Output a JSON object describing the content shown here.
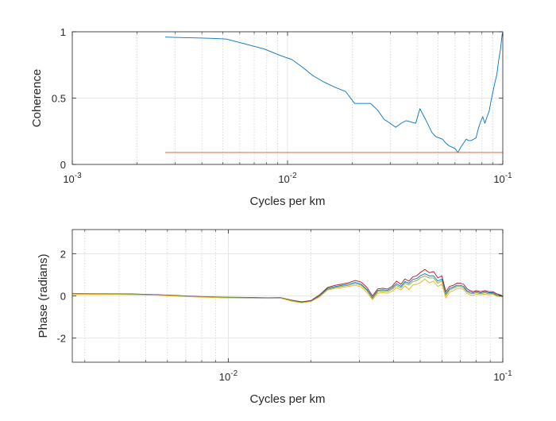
{
  "chart_data": [
    {
      "type": "line",
      "title": "",
      "xlabel": "Cycles per km",
      "ylabel": "Coherence",
      "xscale": "log",
      "xlim": [
        0.001,
        0.1
      ],
      "ylim": [
        0,
        1
      ],
      "grid": true,
      "x_ticks": [
        {
          "value": 0.001,
          "label": "10",
          "exp": "-3"
        },
        {
          "value": 0.01,
          "label": "10",
          "exp": "-2"
        },
        {
          "value": 0.1,
          "label": "10",
          "exp": "-1"
        }
      ],
      "y_ticks": [
        {
          "value": 0,
          "label": "0"
        },
        {
          "value": 0.5,
          "label": "0.5"
        },
        {
          "value": 1,
          "label": "1"
        }
      ],
      "series": [
        {
          "color": "#0072BD",
          "x": [
            0.0027,
            0.0035,
            0.0045,
            0.0052,
            0.0063,
            0.0078,
            0.0093,
            0.0105,
            0.0118,
            0.0131,
            0.0148,
            0.0167,
            0.0186,
            0.0205,
            0.0224,
            0.0243,
            0.0262,
            0.0281,
            0.03,
            0.0318,
            0.0337,
            0.0356,
            0.0375,
            0.0394,
            0.0412,
            0.0431,
            0.045,
            0.0469,
            0.0488,
            0.0506,
            0.0525,
            0.0544,
            0.0563,
            0.0582,
            0.06,
            0.0619,
            0.0638,
            0.0657,
            0.0676,
            0.0694,
            0.0713,
            0.0732,
            0.0751,
            0.077,
            0.0788,
            0.0807,
            0.0826,
            0.0845,
            0.0864,
            0.0882,
            0.0901,
            0.092,
            0.0939,
            0.0958,
            0.0976,
            0.0995
          ],
          "y": [
            0.96,
            0.955,
            0.95,
            0.945,
            0.91,
            0.87,
            0.82,
            0.79,
            0.73,
            0.67,
            0.62,
            0.58,
            0.55,
            0.46,
            0.46,
            0.46,
            0.41,
            0.34,
            0.31,
            0.28,
            0.31,
            0.33,
            0.32,
            0.31,
            0.42,
            0.36,
            0.3,
            0.24,
            0.21,
            0.2,
            0.19,
            0.16,
            0.14,
            0.13,
            0.12,
            0.09,
            0.13,
            0.16,
            0.19,
            0.18,
            0.18,
            0.19,
            0.2,
            0.27,
            0.32,
            0.36,
            0.31,
            0.36,
            0.4,
            0.48,
            0.55,
            0.62,
            0.68,
            0.79,
            0.87,
            0.99
          ]
        },
        {
          "color": "#D95319",
          "x": [
            0.0027,
            0.1
          ],
          "y": [
            0.09,
            0.09
          ]
        }
      ]
    },
    {
      "type": "line",
      "title": "",
      "xlabel": "Cycles per km",
      "ylabel": "Phase (radians)",
      "xscale": "log",
      "xlim": [
        0.0027,
        0.1
      ],
      "ylim": [
        -3.1416,
        3.1416
      ],
      "grid": true,
      "x_ticks": [
        {
          "value": 0.01,
          "label": "10",
          "exp": "-2"
        },
        {
          "value": 0.1,
          "label": "10",
          "exp": "-1"
        }
      ],
      "y_ticks": [
        {
          "value": -2,
          "label": "-2"
        },
        {
          "value": 0,
          "label": "0"
        },
        {
          "value": 2,
          "label": "2"
        }
      ],
      "x": [
        0.0027,
        0.0035,
        0.0045,
        0.0055,
        0.0065,
        0.0075,
        0.0085,
        0.0095,
        0.011,
        0.0125,
        0.014,
        0.0155,
        0.017,
        0.0185,
        0.02,
        0.0215,
        0.023,
        0.0245,
        0.026,
        0.0275,
        0.029,
        0.0305,
        0.032,
        0.0335,
        0.035,
        0.0365,
        0.038,
        0.0395,
        0.041,
        0.0425,
        0.044,
        0.0455,
        0.047,
        0.0485,
        0.05,
        0.052,
        0.054,
        0.056,
        0.058,
        0.06,
        0.062,
        0.064,
        0.066,
        0.068,
        0.07,
        0.072,
        0.074,
        0.076,
        0.078,
        0.08,
        0.083,
        0.086,
        0.089,
        0.092,
        0.095,
        0.098,
        0.1
      ],
      "series": [
        {
          "color": "#A2142F",
          "y": [
            0.11,
            0.1,
            0.09,
            0.06,
            0.02,
            -0.02,
            -0.04,
            -0.06,
            -0.07,
            -0.08,
            -0.09,
            -0.08,
            -0.2,
            -0.28,
            -0.22,
            0.05,
            0.4,
            0.5,
            0.56,
            0.63,
            0.73,
            0.65,
            0.4,
            0.0,
            0.33,
            0.36,
            0.32,
            0.45,
            0.7,
            0.55,
            0.8,
            0.7,
            0.9,
            0.95,
            1.1,
            1.25,
            1.1,
            1.15,
            0.85,
            0.95,
            0.2,
            0.45,
            0.5,
            0.6,
            0.6,
            0.55,
            0.35,
            0.25,
            0.2,
            0.25,
            0.2,
            0.25,
            0.2,
            0.2,
            0.1,
            0.05,
            -0.02
          ]
        },
        {
          "color": "#0072BD",
          "y": [
            0.1,
            0.09,
            0.08,
            0.05,
            0.01,
            -0.03,
            -0.05,
            -0.07,
            -0.08,
            -0.09,
            -0.1,
            -0.09,
            -0.22,
            -0.3,
            -0.24,
            0.0,
            0.35,
            0.44,
            0.5,
            0.56,
            0.64,
            0.55,
            0.3,
            -0.08,
            0.26,
            0.29,
            0.26,
            0.38,
            0.58,
            0.45,
            0.68,
            0.6,
            0.78,
            0.82,
            0.95,
            1.05,
            0.95,
            0.95,
            0.7,
            0.8,
            0.1,
            0.35,
            0.42,
            0.5,
            0.5,
            0.45,
            0.25,
            0.18,
            0.15,
            0.2,
            0.15,
            0.2,
            0.15,
            0.15,
            0.05,
            0.02,
            -0.04
          ]
        },
        {
          "color": "#77AC30",
          "y": [
            0.09,
            0.08,
            0.07,
            0.04,
            0.0,
            -0.04,
            -0.06,
            -0.08,
            -0.09,
            -0.1,
            -0.11,
            -0.1,
            -0.23,
            -0.32,
            -0.26,
            -0.03,
            0.31,
            0.4,
            0.46,
            0.5,
            0.58,
            0.5,
            0.25,
            -0.12,
            0.2,
            0.24,
            0.2,
            0.32,
            0.5,
            0.38,
            0.6,
            0.52,
            0.68,
            0.72,
            0.85,
            0.95,
            0.85,
            0.85,
            0.6,
            0.72,
            0.02,
            0.28,
            0.36,
            0.44,
            0.44,
            0.38,
            0.2,
            0.12,
            0.1,
            0.15,
            0.1,
            0.15,
            0.1,
            0.12,
            0.02,
            0.0,
            -0.05
          ]
        },
        {
          "color": "#EDB120",
          "y": [
            0.08,
            0.07,
            0.06,
            0.03,
            -0.01,
            -0.05,
            -0.07,
            -0.09,
            -0.1,
            -0.11,
            -0.12,
            -0.11,
            -0.25,
            -0.33,
            -0.27,
            -0.05,
            0.28,
            0.35,
            0.4,
            0.45,
            0.5,
            0.42,
            0.15,
            -0.18,
            0.12,
            0.16,
            0.12,
            0.22,
            0.4,
            0.28,
            0.48,
            0.3,
            0.52,
            0.55,
            0.62,
            0.8,
            0.62,
            0.7,
            0.45,
            0.55,
            -0.1,
            0.18,
            0.25,
            0.35,
            0.35,
            0.3,
            0.12,
            0.05,
            0.02,
            0.08,
            0.05,
            0.08,
            0.05,
            0.08,
            -0.02,
            -0.03,
            -0.06
          ]
        }
      ]
    }
  ]
}
